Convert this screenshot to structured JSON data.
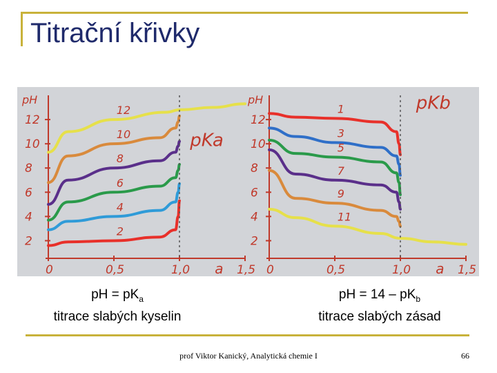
{
  "slide": {
    "title": "Titrační křivky",
    "footer": "prof Viktor Kanický, Analytická chemie I",
    "page_number": "66"
  },
  "captions": {
    "left_line1_main": "pH = pK",
    "left_line1_sub": "a",
    "left_line2": "titrace slabých kyselin",
    "right_line1_main": "pH = 14 – pK",
    "right_line1_sub": "b",
    "right_line2": "titrace slabých zásad"
  },
  "chart_data": [
    {
      "type": "line",
      "xlabel": "a",
      "ylabel": "pH",
      "annotation": "pKa",
      "x_ticks": [
        "0",
        "0,5",
        "1,0",
        "1,5"
      ],
      "y_ticks": [
        "2",
        "4",
        "6",
        "8",
        "10",
        "12"
      ],
      "xlim": [
        0,
        1.5
      ],
      "ylim": [
        1,
        14
      ],
      "series": [
        {
          "name": "2",
          "color": "#e8302a",
          "values": [
            [
              0,
              1.6
            ],
            [
              0.15,
              1.9
            ],
            [
              0.5,
              2.0
            ],
            [
              0.85,
              2.3
            ],
            [
              0.97,
              2.9
            ],
            [
              0.99,
              4.0
            ],
            [
              1.0,
              5.3
            ]
          ]
        },
        {
          "name": "4",
          "color": "#2f9bd8",
          "values": [
            [
              0,
              2.9
            ],
            [
              0.15,
              3.6
            ],
            [
              0.5,
              4.0
            ],
            [
              0.85,
              4.5
            ],
            [
              0.97,
              5.2
            ],
            [
              0.99,
              6.0
            ],
            [
              1.0,
              6.7
            ]
          ]
        },
        {
          "name": "6",
          "color": "#2a9a4a",
          "values": [
            [
              0,
              3.7
            ],
            [
              0.15,
              5.2
            ],
            [
              0.5,
              6.0
            ],
            [
              0.85,
              6.5
            ],
            [
              0.97,
              7.2
            ],
            [
              0.99,
              7.8
            ],
            [
              1.0,
              8.3
            ]
          ]
        },
        {
          "name": "8",
          "color": "#5a2f8a",
          "values": [
            [
              0,
              5.0
            ],
            [
              0.15,
              7.0
            ],
            [
              0.5,
              8.0
            ],
            [
              0.85,
              8.6
            ],
            [
              0.97,
              9.3
            ],
            [
              0.99,
              9.8
            ],
            [
              1.0,
              10.2
            ]
          ]
        },
        {
          "name": "10",
          "color": "#d98a3c",
          "values": [
            [
              0,
              6.8
            ],
            [
              0.15,
              9.0
            ],
            [
              0.5,
              10.0
            ],
            [
              0.85,
              10.5
            ],
            [
              0.97,
              11.3
            ],
            [
              0.99,
              11.8
            ],
            [
              1.0,
              12.3
            ]
          ]
        },
        {
          "name": "12",
          "color": "#e6e04a",
          "values": [
            [
              0,
              9.3
            ],
            [
              0.15,
              11.0
            ],
            [
              0.5,
              12.0
            ],
            [
              0.9,
              12.6
            ],
            [
              1.0,
              12.8
            ],
            [
              1.25,
              13.0
            ],
            [
              1.5,
              13.3
            ]
          ]
        }
      ]
    },
    {
      "type": "line",
      "xlabel": "a",
      "ylabel": "pH",
      "annotation": "pKb",
      "x_ticks": [
        "0",
        "0,5",
        "1,0",
        "1,5"
      ],
      "y_ticks": [
        "2",
        "4",
        "6",
        "8",
        "10",
        "12"
      ],
      "xlim": [
        0,
        1.5
      ],
      "ylim": [
        1,
        14
      ],
      "series": [
        {
          "name": "1",
          "color": "#e8302a",
          "values": [
            [
              0,
              12.5
            ],
            [
              0.2,
              12.2
            ],
            [
              0.5,
              12.1
            ],
            [
              0.85,
              11.8
            ],
            [
              0.97,
              11.0
            ],
            [
              0.99,
              10.0
            ],
            [
              1.0,
              9.1
            ]
          ]
        },
        {
          "name": "3",
          "color": "#2f6fc8",
          "values": [
            [
              0,
              11.3
            ],
            [
              0.2,
              10.6
            ],
            [
              0.5,
              10.1
            ],
            [
              0.85,
              9.7
            ],
            [
              0.97,
              9.0
            ],
            [
              0.99,
              8.3
            ],
            [
              1.0,
              7.4
            ]
          ]
        },
        {
          "name": "5",
          "color": "#2a9a4a",
          "values": [
            [
              0,
              10.3
            ],
            [
              0.2,
              9.2
            ],
            [
              0.5,
              8.9
            ],
            [
              0.85,
              8.5
            ],
            [
              0.97,
              7.6
            ],
            [
              0.99,
              6.8
            ],
            [
              1.0,
              5.8
            ]
          ]
        },
        {
          "name": "7",
          "color": "#5a2f8a",
          "values": [
            [
              0,
              9.5
            ],
            [
              0.2,
              7.5
            ],
            [
              0.5,
              7.0
            ],
            [
              0.85,
              6.6
            ],
            [
              0.97,
              6.0
            ],
            [
              0.99,
              5.2
            ],
            [
              1.0,
              4.6
            ]
          ]
        },
        {
          "name": "9",
          "color": "#d98a3c",
          "values": [
            [
              0,
              7.8
            ],
            [
              0.2,
              5.5
            ],
            [
              0.5,
              5.1
            ],
            [
              0.85,
              4.5
            ],
            [
              0.97,
              4.0
            ],
            [
              0.99,
              3.6
            ],
            [
              1.0,
              3.2
            ]
          ]
        },
        {
          "name": "11",
          "color": "#e6e04a",
          "values": [
            [
              0,
              4.6
            ],
            [
              0.2,
              3.9
            ],
            [
              0.5,
              3.2
            ],
            [
              0.85,
              2.6
            ],
            [
              1.0,
              2.2
            ],
            [
              1.25,
              1.9
            ],
            [
              1.5,
              1.7
            ]
          ]
        }
      ]
    }
  ]
}
